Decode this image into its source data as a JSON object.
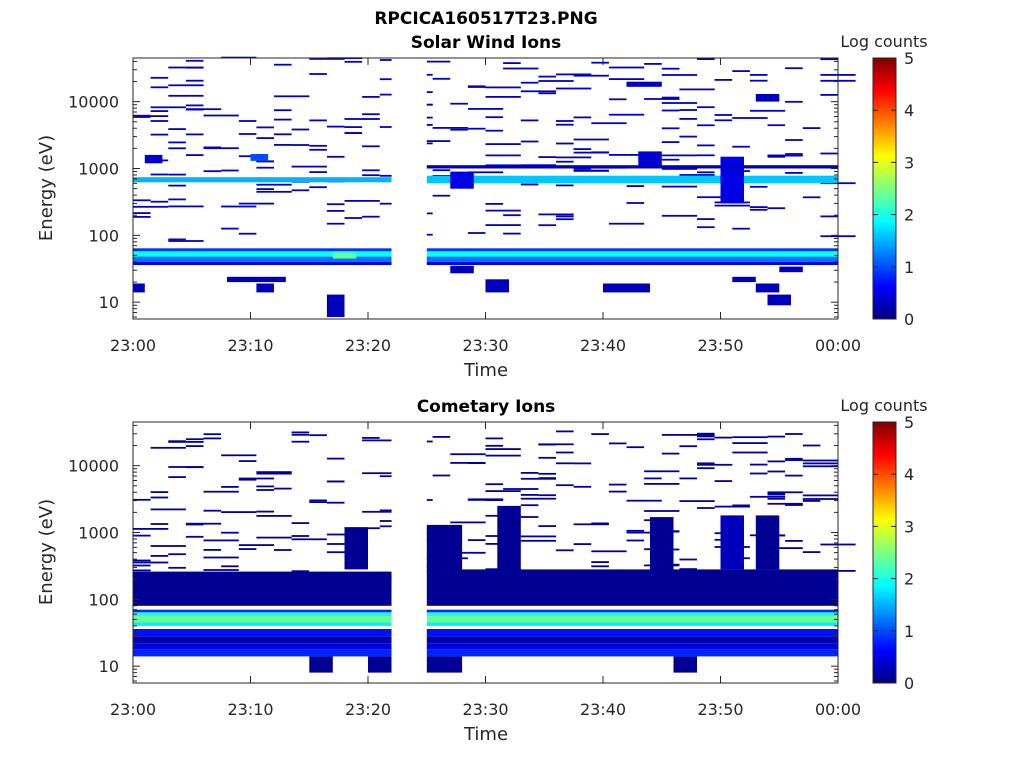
{
  "figure": {
    "file_title": "RPCICA160517T23.PNG"
  },
  "colormap_stops": [
    "#00007f",
    "#0000ff",
    "#007fff",
    "#00ffff",
    "#7fff7f",
    "#ffff00",
    "#ff7f00",
    "#ff0000",
    "#7f0000"
  ],
  "chart_data": [
    {
      "type": "heatmap",
      "title": "Solar Wind Ions",
      "xlabel": "Time",
      "ylabel": "Energy (eV)",
      "x_ticks": [
        "23:00",
        "23:10",
        "23:20",
        "23:30",
        "23:40",
        "23:50",
        "00:00"
      ],
      "x_range_minutes": [
        0,
        60
      ],
      "y_scale": "log",
      "y_range": [
        5.6,
        45000
      ],
      "y_ticks": [
        10,
        100,
        1000,
        10000
      ],
      "y_tick_labels": [
        "10",
        "100",
        "1000",
        "10000"
      ],
      "colorbar": {
        "label": "Log counts",
        "range": [
          0,
          5
        ],
        "ticks": [
          "0",
          "1",
          "2",
          "3",
          "4",
          "5"
        ]
      },
      "data_gap_minutes": [
        22,
        25
      ],
      "cells": [
        {
          "t0": 0,
          "t1": 60,
          "e": [
            48,
            58
          ],
          "v": 1.9
        },
        {
          "t0": 0,
          "t1": 60,
          "e": [
            40,
            48
          ],
          "v": 1.2
        },
        {
          "t0": 0,
          "t1": 60,
          "e": [
            58,
            64
          ],
          "v": 0.9
        },
        {
          "t0": 0,
          "t1": 60,
          "e": [
            36,
            40
          ],
          "v": 0.6
        },
        {
          "t0": 17,
          "t1": 19,
          "e": [
            45,
            55
          ],
          "v": 2.4
        },
        {
          "t0": 0,
          "t1": 22,
          "e": [
            620,
            740
          ],
          "v": 1.5
        },
        {
          "t0": 25,
          "t1": 60,
          "e": [
            600,
            780
          ],
          "v": 1.6
        },
        {
          "t0": 27,
          "t1": 29,
          "e": [
            500,
            900
          ],
          "v": 0.5
        },
        {
          "t0": 50,
          "t1": 52,
          "e": [
            300,
            1500
          ],
          "v": 0.5
        },
        {
          "t0": 25,
          "t1": 60,
          "e": [
            1000,
            1120
          ],
          "v": 0.3
        },
        {
          "t0": 1,
          "t1": 2.5,
          "e": [
            1200,
            1600
          ],
          "v": 0.4
        },
        {
          "t0": 43,
          "t1": 45,
          "e": [
            1100,
            1800
          ],
          "v": 0.4
        },
        {
          "t0": 10,
          "t1": 11.5,
          "e": [
            1300,
            1650
          ],
          "v": 1.0
        },
        {
          "t0": 53,
          "t1": 55,
          "e": [
            10000,
            13000
          ],
          "v": 0.3
        },
        {
          "t0": 0,
          "t1": 1,
          "e": [
            14,
            19
          ],
          "v": 0.3
        },
        {
          "t0": 8,
          "t1": 13,
          "e": [
            20,
            24
          ],
          "v": 0.3
        },
        {
          "t0": 10.5,
          "t1": 12,
          "e": [
            14,
            19
          ],
          "v": 0.3
        },
        {
          "t0": 16.5,
          "t1": 18,
          "e": [
            6,
            13
          ],
          "v": 0.3
        },
        {
          "t0": 27,
          "t1": 29,
          "e": [
            27,
            35
          ],
          "v": 0.3
        },
        {
          "t0": 30,
          "t1": 32,
          "e": [
            14,
            22
          ],
          "v": 0.3
        },
        {
          "t0": 40,
          "t1": 44,
          "e": [
            14,
            19
          ],
          "v": 0.3
        },
        {
          "t0": 51,
          "t1": 53,
          "e": [
            20,
            24
          ],
          "v": 0.3
        },
        {
          "t0": 53,
          "t1": 55,
          "e": [
            14,
            19
          ],
          "v": 0.3
        },
        {
          "t0": 54,
          "t1": 56,
          "e": [
            9,
            13
          ],
          "v": 0.3
        },
        {
          "t0": 55,
          "t1": 57,
          "e": [
            28,
            34
          ],
          "v": 0.3
        }
      ],
      "scatter": {
        "seed": 11,
        "count": 260,
        "logmin": 1.9,
        "logmax": 4.65,
        "v": 0.35
      }
    },
    {
      "type": "heatmap",
      "title": "Cometary Ions",
      "xlabel": "Time",
      "ylabel": "Energy (eV)",
      "x_ticks": [
        "23:00",
        "23:10",
        "23:20",
        "23:30",
        "23:40",
        "23:50",
        "00:00"
      ],
      "x_range_minutes": [
        0,
        60
      ],
      "y_scale": "log",
      "y_range": [
        5.6,
        45000
      ],
      "y_ticks": [
        10,
        100,
        1000,
        10000
      ],
      "y_tick_labels": [
        "10",
        "100",
        "1000",
        "10000"
      ],
      "colorbar": {
        "label": "Log counts",
        "range": [
          0,
          5
        ],
        "ticks": [
          "0",
          "1",
          "2",
          "3",
          "4",
          "5"
        ]
      },
      "data_gap_minutes": [
        22,
        25
      ],
      "cells": [
        {
          "t0": 0,
          "t1": 60,
          "e": [
            45,
            56
          ],
          "v": 2.4
        },
        {
          "t0": 0,
          "t1": 60,
          "e": [
            56,
            64
          ],
          "v": 2.0
        },
        {
          "t0": 0,
          "t1": 60,
          "e": [
            40,
            45
          ],
          "v": 1.8
        },
        {
          "t0": 0,
          "t1": 60,
          "e": [
            64,
            70
          ],
          "v": 0.8
        },
        {
          "t0": 0,
          "t1": 60,
          "e": [
            28,
            36
          ],
          "v": 0.7
        },
        {
          "t0": 0,
          "t1": 60,
          "e": [
            22,
            28
          ],
          "v": 0.2
        },
        {
          "t0": 0,
          "t1": 60,
          "e": [
            18,
            22
          ],
          "v": 0.5
        },
        {
          "t0": 0,
          "t1": 60,
          "e": [
            14,
            18
          ],
          "v": 0.8
        },
        {
          "t0": 0,
          "t1": 22,
          "e": [
            80,
            260
          ],
          "v": 0.1
        },
        {
          "t0": 25,
          "t1": 60,
          "e": [
            80,
            280
          ],
          "v": 0.1
        },
        {
          "t0": 25,
          "t1": 28,
          "e": [
            280,
            1300
          ],
          "v": 0.1
        },
        {
          "t0": 31,
          "t1": 33,
          "e": [
            280,
            2500
          ],
          "v": 0.1
        },
        {
          "t0": 44,
          "t1": 46,
          "e": [
            280,
            1700
          ],
          "v": 0.1
        },
        {
          "t0": 50,
          "t1": 52,
          "e": [
            280,
            1800
          ],
          "v": 0.3
        },
        {
          "t0": 53,
          "t1": 55,
          "e": [
            280,
            1800
          ],
          "v": 0.1
        },
        {
          "t0": 18,
          "t1": 20,
          "e": [
            280,
            1200
          ],
          "v": 0.1
        },
        {
          "t0": 15,
          "t1": 17,
          "e": [
            8,
            14
          ],
          "v": 0.1
        },
        {
          "t0": 20,
          "t1": 22,
          "e": [
            8,
            14
          ],
          "v": 0.1
        },
        {
          "t0": 25,
          "t1": 28,
          "e": [
            8,
            14
          ],
          "v": 0.1
        },
        {
          "t0": 46,
          "t1": 48,
          "e": [
            8,
            14
          ],
          "v": 0.1
        }
      ],
      "scatter": {
        "seed": 29,
        "count": 230,
        "logmin": 2.3,
        "logmax": 4.55,
        "v": 0.15
      }
    }
  ]
}
